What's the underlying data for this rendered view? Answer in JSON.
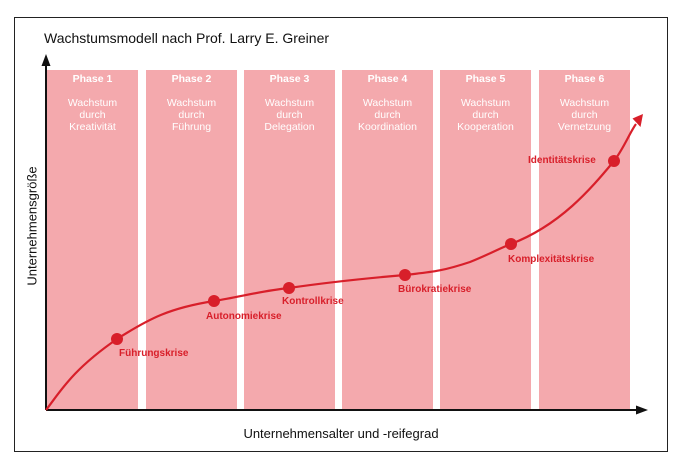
{
  "title": "Wachstumsmodell nach Prof. Larry E. Greiner",
  "x_axis_label": "Unternehmensalter und -reifegrad",
  "y_axis_label": "Unternehmensgröße",
  "colors": {
    "phase_fill": "#f4a9ad",
    "curve": "#d81f2a",
    "text_on_phase": "#ffffff"
  },
  "phases": [
    {
      "label": "Phase 1",
      "lines": [
        "Wachstum",
        "durch",
        "Kreativität"
      ]
    },
    {
      "label": "Phase 2",
      "lines": [
        "Wachstum",
        "durch",
        "Führung"
      ]
    },
    {
      "label": "Phase 3",
      "lines": [
        "Wachstum",
        "durch",
        "Delegation"
      ]
    },
    {
      "label": "Phase 4",
      "lines": [
        "Wachstum",
        "durch",
        "Koordination"
      ]
    },
    {
      "label": "Phase 5",
      "lines": [
        "Wachstum",
        "durch",
        "Kooperation"
      ]
    },
    {
      "label": "Phase 6",
      "lines": [
        "Wachstum",
        "durch",
        "Vernetzung"
      ]
    }
  ],
  "crises": [
    "Führungskrise",
    "Autonomiekrise",
    "Kontrollkrise",
    "Bürokratiekrise",
    "Komplexitätskrise",
    "Identitätskrise"
  ]
}
